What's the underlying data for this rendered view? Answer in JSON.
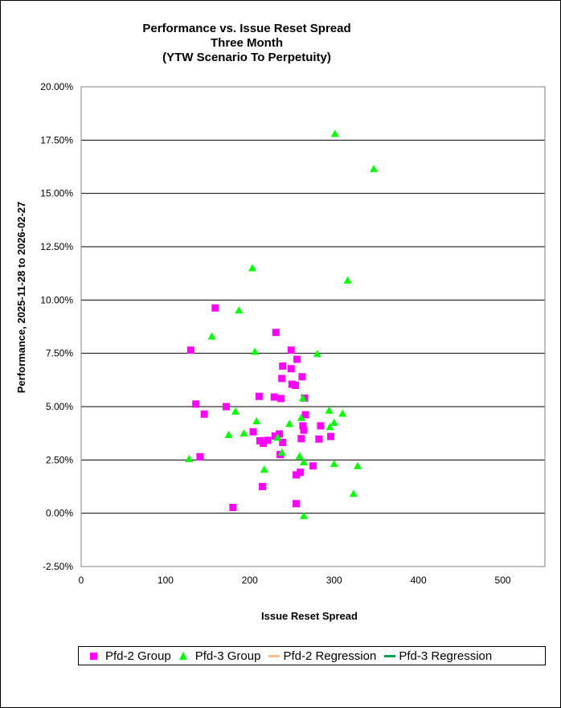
{
  "chart_data": {
    "type": "scatter",
    "title_lines": [
      "Performance vs. Issue Reset Spread",
      "Three Month",
      "(YTW Scenario To Perpetuity)"
    ],
    "xlabel": "Issue  Reset Spread",
    "ylabel": "Performance, 2025-11-28  to 2026-02-27",
    "xlim": [
      0,
      550
    ],
    "ylim": [
      -0.025,
      0.2
    ],
    "x_ticks": [
      0,
      100,
      200,
      300,
      400,
      500
    ],
    "x_tick_labels": [
      "0",
      "100",
      "200",
      "300",
      "400",
      "500"
    ],
    "y_ticks": [
      -0.025,
      0,
      0.025,
      0.05,
      0.075,
      0.1,
      0.125,
      0.15,
      0.175,
      0.2
    ],
    "y_tick_labels": [
      "-2.50%",
      "0.00%",
      "2.50%",
      "5.00%",
      "7.50%",
      "10.00%",
      "12.50%",
      "15.00%",
      "17.50%",
      "20.00%"
    ],
    "grid": "horizontal",
    "legend_position": "bottom",
    "series": [
      {
        "name": "Pfd-2 Group",
        "marker": "square",
        "color": "#ff00ff",
        "points": [
          [
            130,
            0.0765
          ],
          [
            136,
            0.0512
          ],
          [
            141,
            0.0265
          ],
          [
            146,
            0.0465
          ],
          [
            159,
            0.0963
          ],
          [
            172,
            0.05
          ],
          [
            180,
            0.0027
          ],
          [
            204,
            0.0382
          ],
          [
            211,
            0.0548
          ],
          [
            212,
            0.034
          ],
          [
            215,
            0.0125
          ],
          [
            216,
            0.0328
          ],
          [
            221,
            0.0342
          ],
          [
            229,
            0.0545
          ],
          [
            230,
            0.0362
          ],
          [
            231,
            0.0848
          ],
          [
            235,
            0.0372
          ],
          [
            236,
            0.0275
          ],
          [
            237,
            0.0538
          ],
          [
            238,
            0.0632
          ],
          [
            239,
            0.069
          ],
          [
            239,
            0.0332
          ],
          [
            249,
            0.0765
          ],
          [
            249,
            0.0678
          ],
          [
            250,
            0.0605
          ],
          [
            254,
            0.06
          ],
          [
            255,
            0.0045
          ],
          [
            255,
            0.018
          ],
          [
            256,
            0.0722
          ],
          [
            260,
            0.0192
          ],
          [
            261,
            0.035
          ],
          [
            262,
            0.064
          ],
          [
            263,
            0.041
          ],
          [
            264,
            0.039
          ],
          [
            265,
            0.054
          ],
          [
            266,
            0.0462
          ],
          [
            275,
            0.0222
          ],
          [
            282,
            0.0348
          ],
          [
            284,
            0.041
          ],
          [
            296,
            0.036
          ]
        ]
      },
      {
        "name": "Pfd-3 Group",
        "marker": "triangle",
        "color": "#00ff00",
        "points": [
          [
            128,
            0.0255
          ],
          [
            155,
            0.083
          ],
          [
            175,
            0.0368
          ],
          [
            183,
            0.0478
          ],
          [
            187,
            0.0952
          ],
          [
            193,
            0.0375
          ],
          [
            203,
            0.115
          ],
          [
            206,
            0.0758
          ],
          [
            208,
            0.0432
          ],
          [
            217,
            0.0205
          ],
          [
            233,
            0.0355
          ],
          [
            238,
            0.0285
          ],
          [
            247,
            0.042
          ],
          [
            259,
            0.0268
          ],
          [
            261,
            0.0448
          ],
          [
            263,
            0.054
          ],
          [
            264,
            0.024
          ],
          [
            264,
            -0.0012
          ],
          [
            280,
            0.0748
          ],
          [
            294,
            0.0482
          ],
          [
            295,
            0.0405
          ],
          [
            300,
            0.0425
          ],
          [
            300,
            0.0232
          ],
          [
            301,
            0.178
          ],
          [
            310,
            0.0468
          ],
          [
            316,
            0.1092
          ],
          [
            323,
            0.0092
          ],
          [
            328,
            0.0222
          ],
          [
            347,
            0.1615
          ]
        ]
      },
      {
        "name": "Pfd-2 Regression",
        "type": "line",
        "color": "#f9c08d",
        "points": []
      },
      {
        "name": "Pfd-3 Regression",
        "type": "line",
        "color": "#00a651",
        "points": []
      }
    ]
  },
  "legend": {
    "labels": [
      "Pfd-2 Group",
      "Pfd-3 Group",
      "Pfd-2 Regression",
      "Pfd-3 Regression"
    ]
  }
}
